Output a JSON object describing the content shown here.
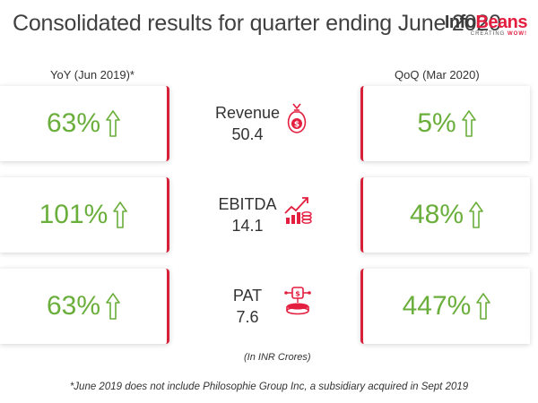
{
  "title": "Consolidated results for quarter ending June 2020",
  "logo": {
    "text_main": "Info",
    "text_accent": "Beans",
    "tagline_prefix": "CREATING",
    "tagline_accent": "WOW!"
  },
  "headers": {
    "yoy": "YoY (Jun 2019)*",
    "qoq": "QoQ (Mar 2020)"
  },
  "metrics": [
    {
      "name": "Revenue",
      "value": "50.4",
      "yoy": "63%",
      "qoq": "5%",
      "icon": "money-bag-icon"
    },
    {
      "name": "EBITDA",
      "value": "14.1",
      "yoy": "101%",
      "qoq": "48%",
      "icon": "growth-chart-icon"
    },
    {
      "name": "PAT",
      "value": "7.6",
      "yoy": "63%",
      "qoq": "447%",
      "icon": "coin-network-icon"
    }
  ],
  "unit_note": "(In INR Crores)",
  "footnote": "*June 2019 does not include Philosophie Group Inc, a subsidiary acquired in Sept 2019",
  "colors": {
    "accent_red": "#d7203a",
    "growth_green": "#6aae3b"
  }
}
